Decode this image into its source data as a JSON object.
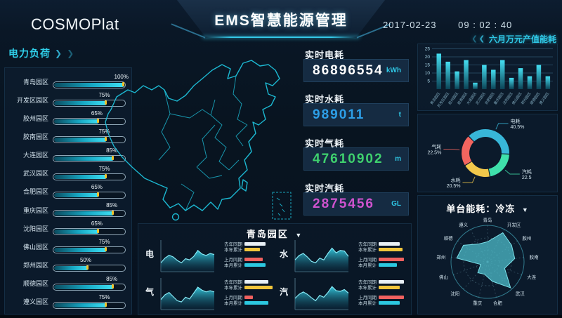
{
  "header": {
    "logo": "COSMOPlat",
    "title": "EMS智慧能源管理",
    "date": "2017-02-23",
    "time": "09 : 02 : 40",
    "right_button": "六月万元产值能耗"
  },
  "icons": {
    "chevron_left": "❮",
    "chevron_right": "❯",
    "dropdown": "▼"
  },
  "stats": {
    "items": [
      {
        "label": "实时电耗",
        "value": "86896554",
        "unit": "kWh",
        "color": "#ffffff"
      },
      {
        "label": "实时水耗",
        "value": "989011",
        "unit": "t",
        "color": "#2d9fe8"
      },
      {
        "label": "实时气耗",
        "value": "47610902",
        "unit": "m",
        "color": "#3fd16e"
      },
      {
        "label": "实时汽耗",
        "value": "2875456",
        "unit": "GL",
        "color": "#cf53cf"
      }
    ]
  },
  "chart_data": [
    {
      "id": "power-load",
      "type": "bar",
      "orientation": "horizontal",
      "title": "电力负荷",
      "categories": [
        "青岛园区",
        "开发区园区",
        "胶州园区",
        "胶南园区",
        "大连园区",
        "武汉园区",
        "合肥园区",
        "重庆园区",
        "沈阳园区",
        "佛山园区",
        "郑州园区",
        "顺德园区",
        "遵义园区"
      ],
      "values": [
        100,
        75,
        65,
        75,
        85,
        75,
        65,
        85,
        65,
        75,
        50,
        85,
        75
      ],
      "value_labels": [
        "100%",
        "75%",
        "65%",
        "75%",
        "85%",
        "75%",
        "65%",
        "85%",
        "65%",
        "75%",
        "50%",
        "85%",
        "75%"
      ],
      "xlim": [
        0,
        100
      ]
    },
    {
      "id": "monthly-output-energy",
      "type": "bar",
      "title": "六月万元产值能耗",
      "categories": [
        "青岛园区",
        "开发区园区",
        "胶州园区",
        "胶南园区",
        "大连园区",
        "武汉园区",
        "合肥园区",
        "重庆园区",
        "沈阳园区",
        "佛山园区",
        "郑州园区",
        "顺德园区",
        "遵义园区"
      ],
      "values": [
        22,
        17,
        11,
        18,
        4,
        15,
        12,
        18,
        7,
        13,
        8,
        15,
        8
      ],
      "ylim": [
        0,
        25
      ],
      "y_ticks": [
        5,
        10,
        15,
        20,
        25
      ]
    },
    {
      "id": "energy-share",
      "type": "pie",
      "labels": [
        "电耗",
        "汽耗",
        "水耗",
        "气耗"
      ],
      "values": [
        40.5,
        22.5,
        20.5,
        22.5
      ],
      "value_labels": [
        "40.5%",
        "22.5",
        "20.5%",
        "22.5%"
      ],
      "colors": [
        "#38b6d8",
        "#3fe0ab",
        "#f2c84b",
        "#f2655f"
      ]
    },
    {
      "id": "unit-energy",
      "type": "radar",
      "title": "单台能耗：冷冻",
      "axes": [
        "青岛",
        "开发区",
        "胶州",
        "胶南",
        "大连",
        "武汉",
        "合肥",
        "重庆",
        "沈阳",
        "佛山",
        "郑州",
        "顺德",
        "遵义"
      ],
      "values": [
        0.55,
        0.9,
        0.8,
        0.75,
        0.5,
        0.95,
        0.55,
        0.35,
        0.4,
        0.2,
        0.85,
        0.8,
        0.55
      ],
      "max": 1
    },
    {
      "id": "qingdao-trends",
      "type": "area",
      "title": "青岛园区",
      "legend": [
        "去年同期",
        "本年累计",
        "上月同期",
        "本月累计"
      ],
      "legend_colors": [
        "#e8f0f6",
        "#f0c53c",
        "#f0615f",
        "#2cc8e0"
      ],
      "charts": [
        {
          "label": "电",
          "series": [
            0.3,
            0.46,
            0.56,
            0.5,
            0.38,
            0.3,
            0.44,
            0.4,
            0.52,
            0.72,
            0.6,
            0.55,
            0.62,
            0.58
          ],
          "legend_bar_widths": [
            30,
            22,
            26,
            30
          ]
        },
        {
          "label": "水",
          "series": [
            0.4,
            0.55,
            0.62,
            0.5,
            0.35,
            0.3,
            0.46,
            0.4,
            0.62,
            0.8,
            0.64,
            0.72,
            0.7,
            0.52
          ],
          "legend_bar_widths": [
            30,
            34,
            36,
            26
          ]
        },
        {
          "label": "气",
          "series": [
            0.34,
            0.5,
            0.58,
            0.44,
            0.3,
            0.26,
            0.42,
            0.36,
            0.56,
            0.76,
            0.66,
            0.6,
            0.64,
            0.6
          ],
          "legend_bar_widths": [
            34,
            40,
            12,
            34
          ]
        },
        {
          "label": "汽",
          "series": [
            0.38,
            0.52,
            0.6,
            0.52,
            0.4,
            0.3,
            0.48,
            0.42,
            0.58,
            0.78,
            0.64,
            0.62,
            0.68,
            0.56
          ],
          "legend_bar_widths": [
            36,
            30,
            36,
            30
          ]
        }
      ]
    }
  ]
}
